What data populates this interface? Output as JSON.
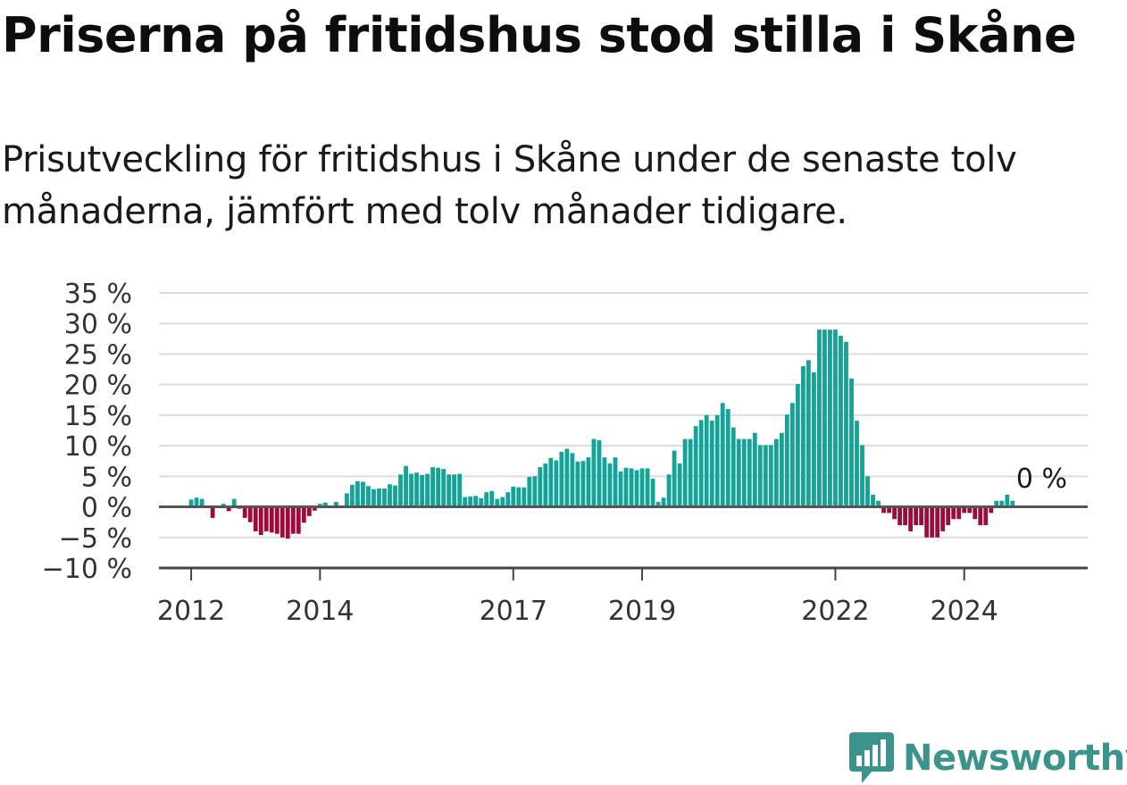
{
  "title": "Priserna på fritidshus stod stilla i Skåne",
  "subtitle": "Prisutveckling för fritidshus i Skåne under de senaste tolv månaderna, jämfört med tolv månader tidigare.",
  "brand": {
    "name": "Newsworthy",
    "color": "#3a948c"
  },
  "colors": {
    "positive": "#13a399",
    "negative": "#9e0a3e",
    "grid": "#dcdcdc",
    "zero": "#555555"
  },
  "chart_data": {
    "type": "bar",
    "x_start": "2011-07",
    "x_end": "2025-12",
    "y_unit": "%",
    "ylim": [
      -10,
      35
    ],
    "y_ticks": [
      -10,
      -5,
      0,
      5,
      10,
      15,
      20,
      25,
      30,
      35
    ],
    "y_tick_labels": [
      "−10 %",
      "−5 %",
      "0 %",
      "5 %",
      "10 %",
      "15 %",
      "20 %",
      "25 %",
      "30 %",
      "35 %"
    ],
    "x_ticks": [
      "2012-01",
      "2014-01",
      "2017-01",
      "2019-01",
      "2022-01",
      "2024-01"
    ],
    "x_tick_labels": [
      "2012",
      "2014",
      "2017",
      "2019",
      "2022",
      "2024"
    ],
    "grid": true,
    "legend": "none",
    "annotation": {
      "month": "2025-02",
      "text": "0 %"
    },
    "series": [
      {
        "start": "2012-01",
        "values": [
          1.2,
          1.5,
          1.3,
          0.0,
          -1.8,
          0.0,
          0.5,
          -0.7,
          1.3,
          -0.3,
          -1.8,
          -2.5,
          -4.0,
          -4.6,
          -4.0,
          -4.2,
          -4.4,
          -5.0,
          -5.2,
          -4.4,
          -4.4,
          -2.6,
          -1.5,
          -0.6,
          0.5,
          0.7,
          0.0,
          0.8,
          0.0,
          2.2,
          3.6,
          4.2,
          4.1,
          3.4,
          2.9,
          3.0,
          3.0,
          3.7,
          3.5,
          5.3,
          6.7,
          5.4,
          5.6,
          5.2,
          5.4,
          6.5,
          6.4,
          6.2,
          5.3,
          5.3,
          5.4,
          1.6,
          1.7,
          1.8,
          1.4,
          2.4,
          2.6,
          1.3,
          1.6,
          2.4,
          3.3,
          3.2,
          3.2,
          4.9,
          5.0,
          6.5,
          7.1,
          8.0,
          7.6,
          9.0,
          9.5,
          8.8,
          7.4,
          7.5,
          8.1,
          11.1,
          10.9,
          8.1,
          7.1,
          8.1,
          5.8,
          6.4,
          6.3,
          6.0,
          6.3,
          6.3,
          4.6,
          0.8,
          1.5,
          5.3,
          9.2,
          7.1,
          11.1,
          11.1,
          13.2,
          14.2,
          15.0,
          14.1,
          15.0,
          17.0,
          16.0,
          13.0,
          11.1,
          11.1,
          11.1,
          12.1,
          10.1,
          10.1,
          10.1,
          11.1,
          12.1,
          15.1,
          17.0,
          20.1,
          23.0,
          24.0,
          22.0,
          29.0,
          29.0,
          29.0,
          29.0,
          28.0,
          27.0,
          21.0,
          14.1,
          10.1,
          5.0,
          2.0,
          1.0,
          -1.0,
          -1.0,
          -2.0,
          -3.0,
          -3.0,
          -4.0,
          -3.0,
          -3.0,
          -5.0,
          -5.0,
          -5.0,
          -4.0,
          -3.0,
          -2.0,
          -2.0,
          -1.0,
          -1.0,
          -2.0,
          -3.0,
          -3.0,
          -1.0,
          1.0,
          1.0,
          2.0,
          1.0
        ]
      }
    ]
  }
}
